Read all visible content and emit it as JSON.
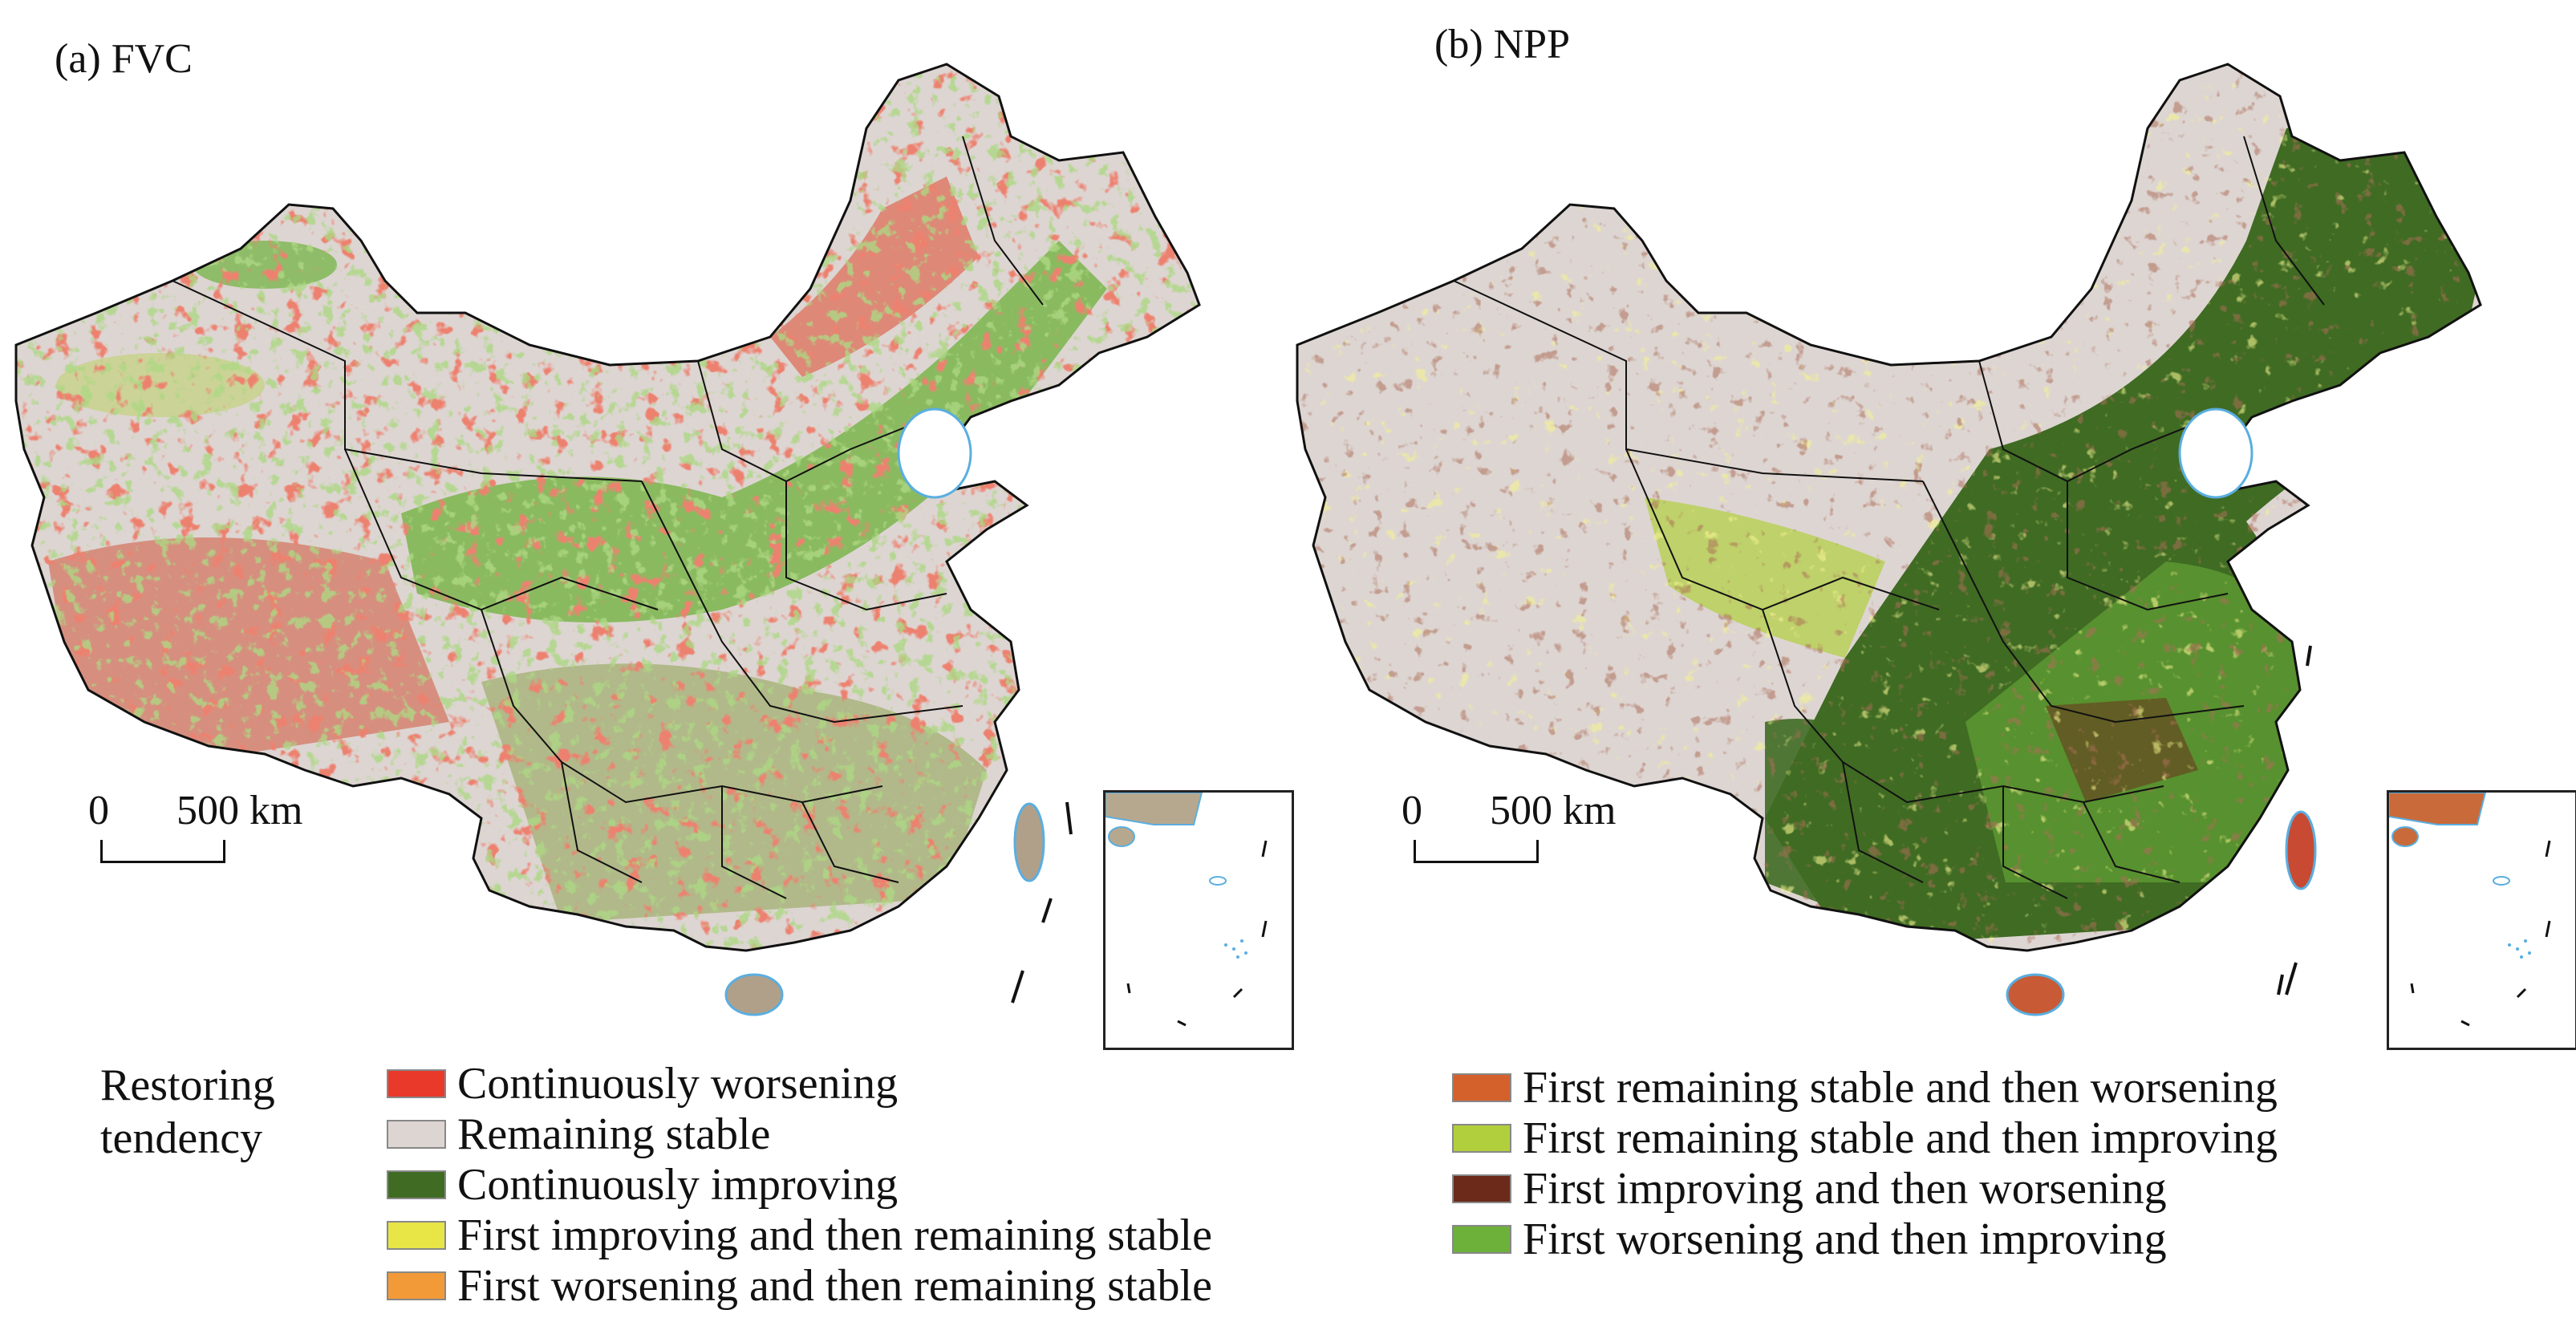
{
  "panels": [
    {
      "label": "(a) FVC"
    },
    {
      "label": "(b) NPP"
    }
  ],
  "scale_bar": {
    "zero": "0",
    "distance": "500 km"
  },
  "legend": {
    "title_line1": "Restoring",
    "title_line2": "tendency",
    "items": [
      {
        "label": "Continuously worsening",
        "color": "#e8392b"
      },
      {
        "label": "Remaining stable",
        "color": "#ddd5d2"
      },
      {
        "label": "Continuously improving",
        "color": "#3f6b23"
      },
      {
        "label": "First improving and then remaining stable",
        "color": "#e8e547"
      },
      {
        "label": "First worsening and then remaining stable",
        "color": "#f29a38"
      },
      {
        "label": "First remaining stable and then worsening",
        "color": "#d4602c"
      },
      {
        "label": "First remaining stable and then improving",
        "color": "#b1cf3d"
      },
      {
        "label": "First improving and then worsening",
        "color": "#6b2a1a"
      },
      {
        "label": "First worsening and then improving",
        "color": "#6db03a"
      }
    ]
  },
  "colors": {
    "water": "#5aaee0",
    "boundary": "#111111"
  }
}
